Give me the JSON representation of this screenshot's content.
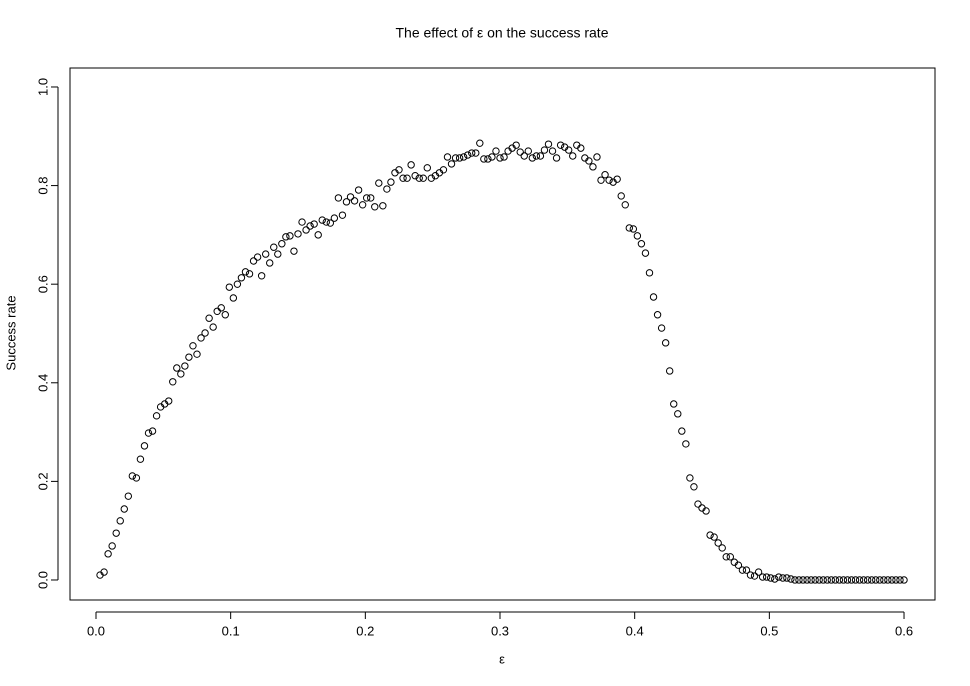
{
  "chart_data": {
    "type": "scatter",
    "title": "The effect of ε on the success rate",
    "x_label": "ε",
    "y_label": "Success rate",
    "marker_color": "#000000",
    "x": [
      0.003,
      0.006,
      0.009,
      0.012,
      0.015,
      0.018,
      0.021,
      0.024,
      0.027,
      0.03,
      0.033,
      0.036,
      0.039,
      0.042,
      0.045,
      0.048,
      0.051,
      0.054,
      0.057,
      0.06,
      0.063,
      0.066,
      0.069,
      0.072,
      0.075,
      0.078,
      0.081,
      0.084,
      0.087,
      0.09,
      0.093,
      0.096,
      0.099,
      0.102,
      0.105,
      0.108,
      0.111,
      0.114,
      0.117,
      0.12,
      0.123,
      0.126,
      0.129,
      0.132,
      0.135,
      0.138,
      0.141,
      0.144,
      0.147,
      0.15,
      0.153,
      0.156,
      0.159,
      0.162,
      0.165,
      0.168,
      0.171,
      0.174,
      0.177,
      0.18,
      0.183,
      0.186,
      0.189,
      0.192,
      0.195,
      0.198,
      0.201,
      0.204,
      0.207,
      0.21,
      0.213,
      0.216,
      0.219,
      0.222,
      0.225,
      0.228,
      0.231,
      0.234,
      0.237,
      0.24,
      0.243,
      0.246,
      0.249,
      0.252,
      0.255,
      0.258,
      0.261,
      0.264,
      0.267,
      0.27,
      0.273,
      0.276,
      0.279,
      0.282,
      0.285,
      0.288,
      0.291,
      0.294,
      0.297,
      0.3,
      0.303,
      0.306,
      0.309,
      0.312,
      0.315,
      0.318,
      0.321,
      0.324,
      0.327,
      0.33,
      0.333,
      0.336,
      0.339,
      0.342,
      0.345,
      0.348,
      0.351,
      0.354,
      0.357,
      0.36,
      0.363,
      0.366,
      0.369,
      0.372,
      0.375,
      0.378,
      0.381,
      0.384,
      0.387,
      0.39,
      0.393,
      0.396,
      0.399,
      0.402,
      0.405,
      0.408,
      0.411,
      0.414,
      0.417,
      0.42,
      0.423,
      0.426,
      0.429,
      0.432,
      0.435,
      0.438,
      0.441,
      0.444,
      0.447,
      0.45,
      0.453,
      0.456,
      0.459,
      0.462,
      0.465,
      0.468,
      0.471,
      0.474,
      0.477,
      0.48,
      0.483,
      0.486,
      0.489,
      0.492,
      0.495,
      0.498,
      0.501,
      0.504,
      0.507,
      0.51,
      0.513,
      0.516,
      0.519,
      0.522,
      0.525,
      0.528,
      0.531,
      0.534,
      0.537,
      0.54,
      0.543,
      0.546,
      0.549,
      0.552,
      0.555,
      0.558,
      0.561,
      0.564,
      0.567,
      0.57,
      0.573,
      0.576,
      0.579,
      0.582,
      0.585,
      0.588,
      0.591,
      0.594,
      0.597,
      0.6
    ],
    "values": [
      0.01,
      0.016,
      0.053,
      0.069,
      0.095,
      0.12,
      0.144,
      0.17,
      0.211,
      0.207,
      0.245,
      0.272,
      0.298,
      0.302,
      0.333,
      0.351,
      0.357,
      0.363,
      0.402,
      0.43,
      0.418,
      0.434,
      0.452,
      0.475,
      0.458,
      0.491,
      0.501,
      0.531,
      0.513,
      0.545,
      0.552,
      0.538,
      0.594,
      0.572,
      0.6,
      0.613,
      0.625,
      0.621,
      0.647,
      0.655,
      0.617,
      0.661,
      0.643,
      0.675,
      0.661,
      0.682,
      0.696,
      0.698,
      0.667,
      0.702,
      0.726,
      0.71,
      0.718,
      0.722,
      0.7,
      0.73,
      0.726,
      0.724,
      0.734,
      0.775,
      0.74,
      0.767,
      0.777,
      0.769,
      0.791,
      0.761,
      0.775,
      0.775,
      0.757,
      0.805,
      0.759,
      0.793,
      0.807,
      0.826,
      0.832,
      0.815,
      0.815,
      0.842,
      0.82,
      0.815,
      0.815,
      0.836,
      0.815,
      0.82,
      0.826,
      0.832,
      0.858,
      0.844,
      0.856,
      0.856,
      0.858,
      0.862,
      0.866,
      0.866,
      0.886,
      0.854,
      0.854,
      0.858,
      0.87,
      0.856,
      0.858,
      0.87,
      0.876,
      0.882,
      0.868,
      0.86,
      0.87,
      0.856,
      0.86,
      0.86,
      0.872,
      0.884,
      0.87,
      0.856,
      0.882,
      0.878,
      0.872,
      0.86,
      0.882,
      0.876,
      0.856,
      0.85,
      0.838,
      0.858,
      0.811,
      0.822,
      0.811,
      0.807,
      0.813,
      0.779,
      0.761,
      0.714,
      0.712,
      0.698,
      0.682,
      0.663,
      0.623,
      0.574,
      0.538,
      0.511,
      0.481,
      0.424,
      0.357,
      0.337,
      0.302,
      0.276,
      0.207,
      0.189,
      0.154,
      0.146,
      0.14,
      0.091,
      0.087,
      0.075,
      0.065,
      0.047,
      0.047,
      0.036,
      0.03,
      0.02,
      0.02,
      0.01,
      0.008,
      0.016,
      0.006,
      0.006,
      0.004,
      0.002,
      0.006,
      0.004,
      0.004,
      0.002,
      0,
      0,
      0,
      0,
      0,
      0,
      0,
      0,
      0,
      0,
      0,
      0,
      0,
      0,
      0,
      0,
      0,
      0,
      0,
      0,
      0,
      0,
      0,
      0,
      0,
      0,
      0,
      0
    ],
    "xlim": [
      -0.0193,
      0.623
    ],
    "ylim": [
      -0.0406,
      1.0385
    ],
    "xticks": [
      {
        "value": 0,
        "label": "0.0"
      },
      0.1,
      0.2,
      0.3,
      0.4,
      0.5,
      0.6
    ],
    "yticks": [
      {
        "value": 0,
        "label": "0.0"
      },
      0.2,
      0.4,
      0.6,
      0.8,
      {
        "value": 1,
        "label": "1.0"
      }
    ]
  }
}
